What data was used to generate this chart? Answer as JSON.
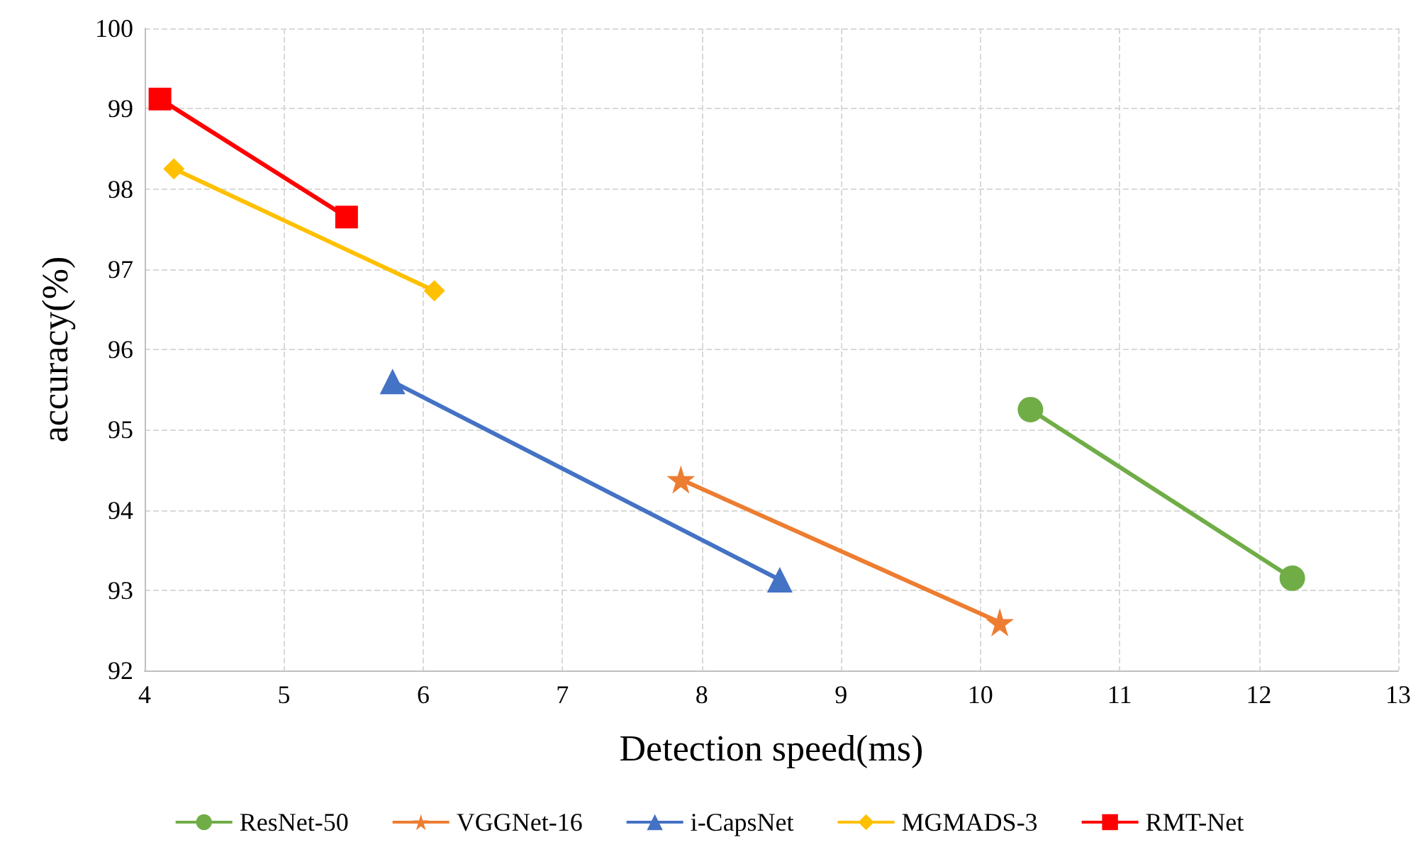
{
  "chart_data": {
    "type": "line",
    "xlabel": "Detection speed(ms)",
    "ylabel": "accuracy(%)",
    "xlim": [
      4,
      13
    ],
    "xticks": [
      4,
      5,
      6,
      7,
      8,
      9,
      10,
      11,
      12,
      13
    ],
    "ylim": [
      92,
      100
    ],
    "yticks": [
      92,
      93,
      94,
      95,
      96,
      97,
      98,
      99,
      100
    ],
    "grid": true,
    "legend": "bottom",
    "line_style": "solid",
    "series": [
      {
        "name": "ResNet-50",
        "color": "#70ad47",
        "marker": "circle",
        "x": [
          10.36,
          12.24
        ],
        "values": [
          95.25,
          93.15
        ]
      },
      {
        "name": "VGGNet-16",
        "color": "#ed7d31",
        "marker": "star",
        "x": [
          7.85,
          10.14
        ],
        "values": [
          94.38,
          92.6
        ]
      },
      {
        "name": "i-CapsNet",
        "color": "#4472c4",
        "marker": "triangle",
        "x": [
          5.78,
          8.56
        ],
        "values": [
          95.6,
          93.13
        ]
      },
      {
        "name": "MGMADS-3",
        "color": "#ffc000",
        "marker": "diamond",
        "x": [
          4.21,
          6.08
        ],
        "values": [
          98.25,
          96.73
        ]
      },
      {
        "name": "RMT-Net",
        "color": "#ff0000",
        "marker": "square",
        "x": [
          4.11,
          5.45
        ],
        "values": [
          99.12,
          97.65
        ]
      }
    ]
  }
}
